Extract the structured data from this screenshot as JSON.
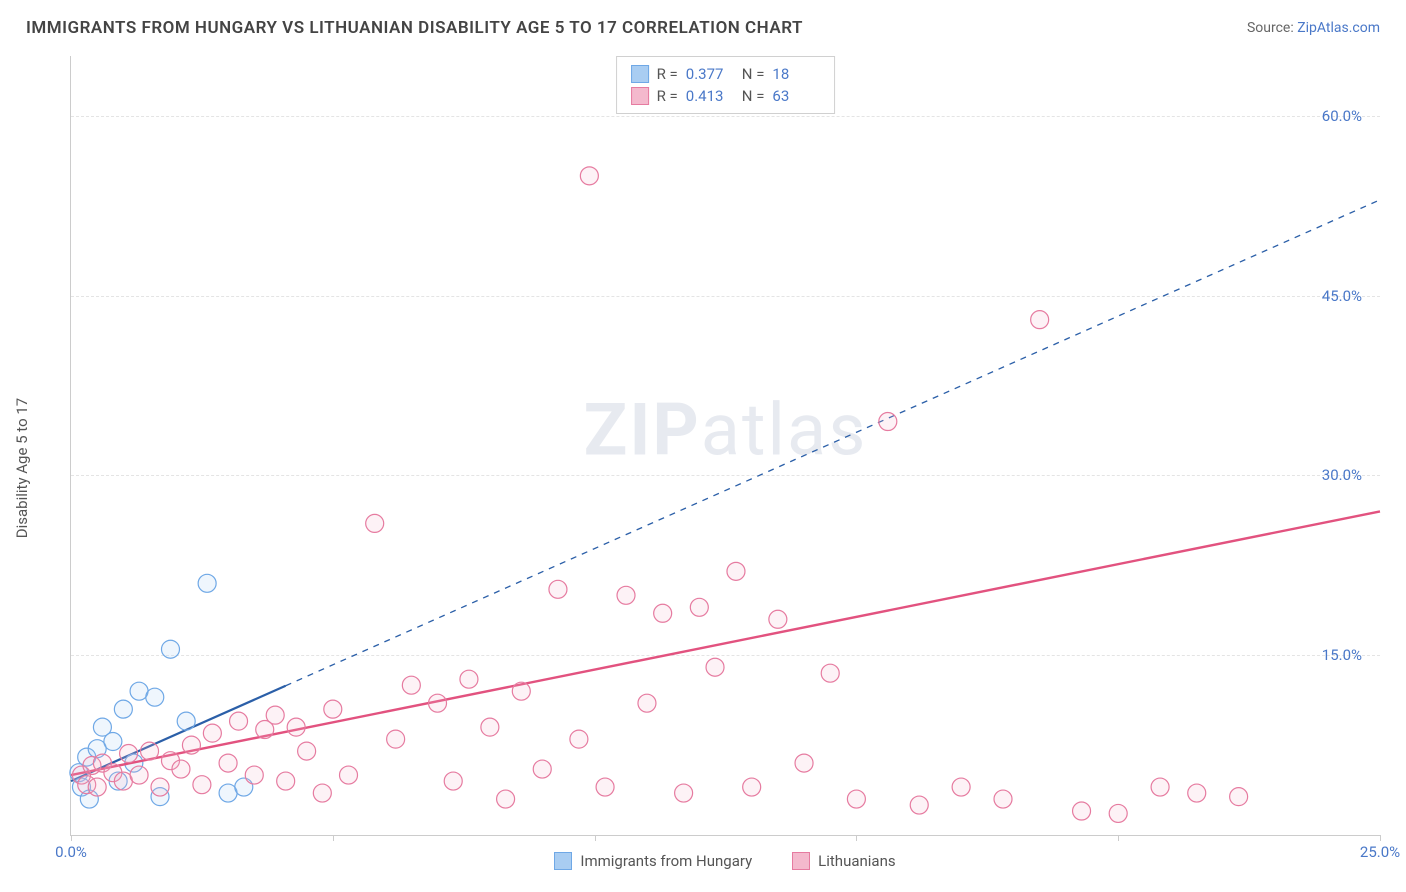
{
  "title": "IMMIGRANTS FROM HUNGARY VS LITHUANIAN DISABILITY AGE 5 TO 17 CORRELATION CHART",
  "source_label": "Source: ",
  "source_name": "ZipAtlas.com",
  "watermark_zip": "ZIP",
  "watermark_atlas": "atlas",
  "yaxis_title": "Disability Age 5 to 17",
  "chart": {
    "type": "scatter",
    "background_color": "#ffffff",
    "grid_color": "#e4e4e4",
    "axis_color": "#cccccc",
    "tick_label_color": "#4a78c8",
    "xlim": [
      0,
      25
    ],
    "ylim": [
      0,
      65
    ],
    "x_ticks": [
      0,
      5,
      10,
      15,
      20,
      25
    ],
    "x_tick_labels": {
      "0": "0.0%",
      "25": "25.0%"
    },
    "y_ticks": [
      15,
      30,
      45,
      60
    ],
    "y_tick_labels": {
      "15": "15.0%",
      "30": "30.0%",
      "45": "45.0%",
      "60": "60.0%"
    },
    "marker_radius": 9,
    "marker_stroke_width": 1.2,
    "marker_fill_opacity": 0.18,
    "series": [
      {
        "name": "Immigrants from Hungary",
        "color_stroke": "#6fa8e6",
        "color_fill": "#a9cdf2",
        "line_color": "#2b5fa8",
        "line_width": 2.2,
        "dash_extrapolate": "6,6",
        "R_label": "R =",
        "R": "0.377",
        "N_label": "N =",
        "N": "18",
        "points": [
          [
            0.15,
            5.2
          ],
          [
            0.2,
            4.0
          ],
          [
            0.3,
            6.5
          ],
          [
            0.35,
            3.0
          ],
          [
            0.5,
            7.2
          ],
          [
            0.6,
            9.0
          ],
          [
            0.8,
            7.8
          ],
          [
            0.9,
            4.5
          ],
          [
            1.0,
            10.5
          ],
          [
            1.2,
            6.0
          ],
          [
            1.3,
            12.0
          ],
          [
            1.6,
            11.5
          ],
          [
            1.7,
            3.2
          ],
          [
            1.9,
            15.5
          ],
          [
            2.2,
            9.5
          ],
          [
            2.6,
            21.0
          ],
          [
            3.0,
            3.5
          ],
          [
            3.3,
            4.0
          ]
        ],
        "trendline": {
          "x1": 0,
          "y1": 4.5,
          "x2": 25,
          "y2": 53.0,
          "solid_until_x": 4.1
        }
      },
      {
        "name": "Lithuanians",
        "color_stroke": "#e67ba0",
        "color_fill": "#f4b9cd",
        "line_color": "#e2527f",
        "line_width": 2.4,
        "dash_extrapolate": "",
        "R_label": "R =",
        "R": "0.413",
        "N_label": "N =",
        "N": "63",
        "points": [
          [
            0.2,
            5.0
          ],
          [
            0.3,
            4.2
          ],
          [
            0.4,
            5.8
          ],
          [
            0.5,
            4.0
          ],
          [
            0.6,
            6.0
          ],
          [
            0.8,
            5.2
          ],
          [
            1.0,
            4.5
          ],
          [
            1.1,
            6.8
          ],
          [
            1.3,
            5.0
          ],
          [
            1.5,
            7.0
          ],
          [
            1.7,
            4.0
          ],
          [
            1.9,
            6.2
          ],
          [
            2.1,
            5.5
          ],
          [
            2.3,
            7.5
          ],
          [
            2.5,
            4.2
          ],
          [
            2.7,
            8.5
          ],
          [
            3.0,
            6.0
          ],
          [
            3.2,
            9.5
          ],
          [
            3.5,
            5.0
          ],
          [
            3.7,
            8.8
          ],
          [
            3.9,
            10.0
          ],
          [
            4.1,
            4.5
          ],
          [
            4.3,
            9.0
          ],
          [
            4.5,
            7.0
          ],
          [
            4.8,
            3.5
          ],
          [
            5.0,
            10.5
          ],
          [
            5.3,
            5.0
          ],
          [
            5.8,
            26.0
          ],
          [
            6.2,
            8.0
          ],
          [
            6.5,
            12.5
          ],
          [
            7.0,
            11.0
          ],
          [
            7.3,
            4.5
          ],
          [
            7.6,
            13.0
          ],
          [
            8.0,
            9.0
          ],
          [
            8.3,
            3.0
          ],
          [
            8.6,
            12.0
          ],
          [
            9.0,
            5.5
          ],
          [
            9.3,
            20.5
          ],
          [
            9.7,
            8.0
          ],
          [
            9.9,
            55.0
          ],
          [
            10.2,
            4.0
          ],
          [
            10.6,
            20.0
          ],
          [
            11.0,
            11.0
          ],
          [
            11.3,
            18.5
          ],
          [
            11.7,
            3.5
          ],
          [
            12.0,
            19.0
          ],
          [
            12.3,
            14.0
          ],
          [
            12.7,
            22.0
          ],
          [
            13.0,
            4.0
          ],
          [
            13.5,
            18.0
          ],
          [
            14.0,
            6.0
          ],
          [
            14.5,
            13.5
          ],
          [
            15.0,
            3.0
          ],
          [
            15.6,
            34.5
          ],
          [
            16.2,
            2.5
          ],
          [
            17.0,
            4.0
          ],
          [
            17.8,
            3.0
          ],
          [
            18.5,
            43.0
          ],
          [
            19.3,
            2.0
          ],
          [
            20.0,
            1.8
          ],
          [
            20.8,
            4.0
          ],
          [
            21.5,
            3.5
          ],
          [
            22.3,
            3.2
          ]
        ],
        "trendline": {
          "x1": 0,
          "y1": 5.0,
          "x2": 25,
          "y2": 27.0,
          "solid_until_x": 25
        }
      }
    ],
    "bottom_legend": [
      {
        "swatch_fill": "#a9cdf2",
        "swatch_stroke": "#6fa8e6",
        "label": "Immigrants from Hungary"
      },
      {
        "swatch_fill": "#f4b9cd",
        "swatch_stroke": "#e67ba0",
        "label": "Lithuanians"
      }
    ]
  }
}
